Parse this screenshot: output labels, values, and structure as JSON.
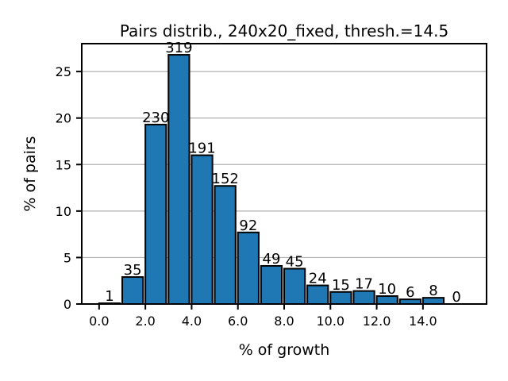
{
  "chart_data": {
    "type": "bar",
    "title": "Pairs distrib., 240x20_fixed, thresh.=14.5",
    "xlabel": "% of growth",
    "ylabel": "% of pairs",
    "bin_starts": [
      0,
      1,
      2,
      3,
      4,
      5,
      6,
      7,
      8,
      9,
      10,
      11,
      12,
      13,
      14,
      15
    ],
    "values": [
      0.08,
      2.9,
      19.3,
      26.8,
      16.0,
      12.7,
      7.7,
      4.1,
      3.8,
      2.0,
      1.3,
      1.4,
      0.85,
      0.5,
      0.67,
      0.0
    ],
    "counts": [
      "1",
      "35",
      "230",
      "319",
      "191",
      "152",
      "92",
      "49",
      "45",
      "24",
      "15",
      "17",
      "10",
      "6",
      "8",
      "0"
    ],
    "xticks": [
      0,
      2,
      4,
      6,
      8,
      10,
      12,
      14
    ],
    "xtick_labels": [
      "0.0",
      "2.0",
      "4.0",
      "6.0",
      "8.0",
      "10.0",
      "12.0",
      "14.0"
    ],
    "yticks": [
      0,
      5,
      10,
      15,
      20,
      25
    ],
    "ytick_labels": [
      "0",
      "5",
      "10",
      "15",
      "20",
      "25"
    ],
    "xlim": [
      -0.75,
      16.75
    ],
    "ylim": [
      0,
      28
    ],
    "grid": "y",
    "bar_color": "#1f77b4",
    "edge_color": "#000000",
    "grid_color": "#b0b0b0"
  }
}
